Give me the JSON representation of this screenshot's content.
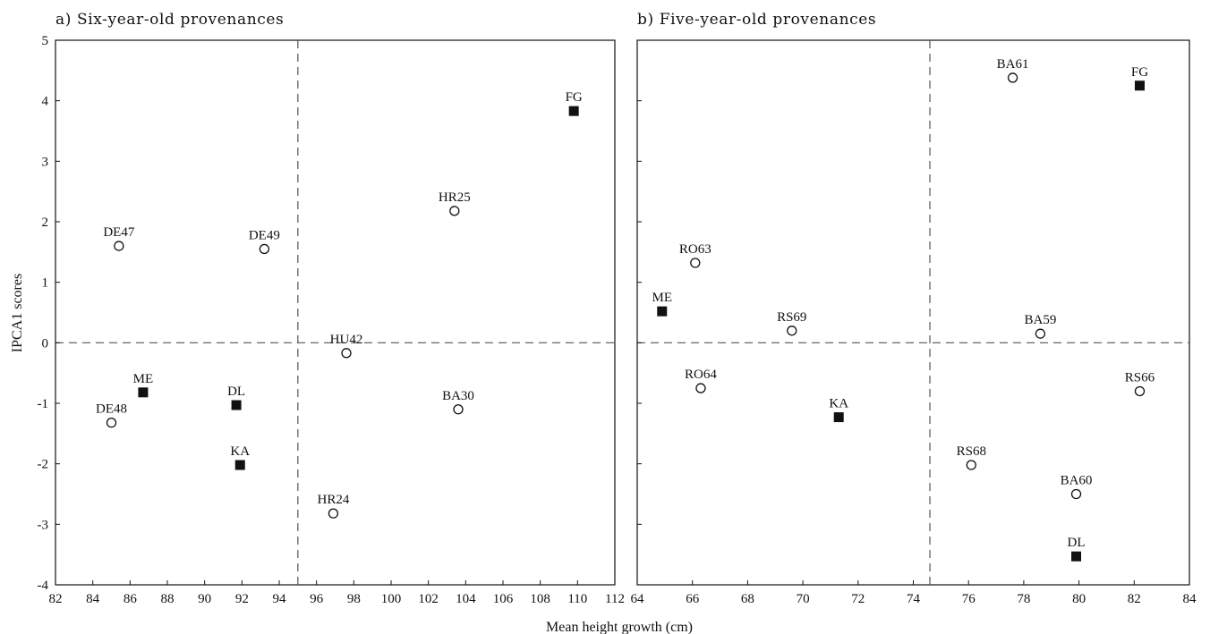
{
  "chart_data": [
    {
      "type": "scatter",
      "title": "a) Six-year-old provenances",
      "xlabel": "Mean height growth (cm)",
      "ylabel": "IPCA1 scores",
      "xlim": [
        82,
        112
      ],
      "ylim": [
        -4,
        5
      ],
      "xticks": [
        82,
        84,
        86,
        88,
        90,
        92,
        94,
        96,
        98,
        100,
        102,
        104,
        106,
        108,
        110,
        112
      ],
      "yticks": [
        -4,
        -3,
        -2,
        -1,
        0,
        1,
        2,
        3,
        4,
        5
      ],
      "reference_lines": {
        "x": 95.0,
        "y": 0
      },
      "legend": "none",
      "grid": false,
      "points": [
        {
          "label": "DE47",
          "x": 85.4,
          "y": 1.6,
          "marker": "circle"
        },
        {
          "label": "DE49",
          "x": 93.2,
          "y": 1.55,
          "marker": "circle"
        },
        {
          "label": "ME",
          "x": 86.7,
          "y": -0.82,
          "marker": "square"
        },
        {
          "label": "DE48",
          "x": 85.0,
          "y": -1.32,
          "marker": "circle"
        },
        {
          "label": "DL",
          "x": 91.7,
          "y": -1.03,
          "marker": "square"
        },
        {
          "label": "KA",
          "x": 91.9,
          "y": -2.02,
          "marker": "square"
        },
        {
          "label": "HU42",
          "x": 97.6,
          "y": -0.17,
          "marker": "circle"
        },
        {
          "label": "HR24",
          "x": 96.9,
          "y": -2.82,
          "marker": "circle"
        },
        {
          "label": "HR25",
          "x": 103.4,
          "y": 2.18,
          "marker": "circle"
        },
        {
          "label": "BA30",
          "x": 103.6,
          "y": -1.1,
          "marker": "circle"
        },
        {
          "label": "FG",
          "x": 109.8,
          "y": 3.83,
          "marker": "square"
        }
      ]
    },
    {
      "type": "scatter",
      "title": "b) Five-year-old provenances",
      "xlabel": "Mean height growth (cm)",
      "ylabel": "",
      "xlim": [
        64,
        84
      ],
      "ylim": [
        -4,
        5
      ],
      "xticks": [
        64,
        66,
        68,
        70,
        72,
        74,
        76,
        78,
        80,
        82,
        84
      ],
      "yticks": [],
      "reference_lines": {
        "x": 74.6,
        "y": 0
      },
      "legend": "none",
      "grid": false,
      "points": [
        {
          "label": "RO63",
          "x": 66.1,
          "y": 1.32,
          "marker": "circle"
        },
        {
          "label": "ME",
          "x": 64.9,
          "y": 0.52,
          "marker": "square"
        },
        {
          "label": "RS69",
          "x": 69.6,
          "y": 0.2,
          "marker": "circle"
        },
        {
          "label": "RO64",
          "x": 66.3,
          "y": -0.75,
          "marker": "circle"
        },
        {
          "label": "KA",
          "x": 71.3,
          "y": -1.23,
          "marker": "square"
        },
        {
          "label": "BA61",
          "x": 77.6,
          "y": 4.38,
          "marker": "circle"
        },
        {
          "label": "FG",
          "x": 82.2,
          "y": 4.25,
          "marker": "square"
        },
        {
          "label": "BA59",
          "x": 78.6,
          "y": 0.15,
          "marker": "circle"
        },
        {
          "label": "RS66",
          "x": 82.2,
          "y": -0.8,
          "marker": "circle"
        },
        {
          "label": "RS68",
          "x": 76.1,
          "y": -2.02,
          "marker": "circle"
        },
        {
          "label": "BA60",
          "x": 79.9,
          "y": -2.5,
          "marker": "circle"
        },
        {
          "label": "DL",
          "x": 79.9,
          "y": -3.53,
          "marker": "square"
        }
      ]
    }
  ],
  "colors": {
    "ink": "#111111",
    "reference_line": "#555555",
    "background": "#ffffff"
  }
}
